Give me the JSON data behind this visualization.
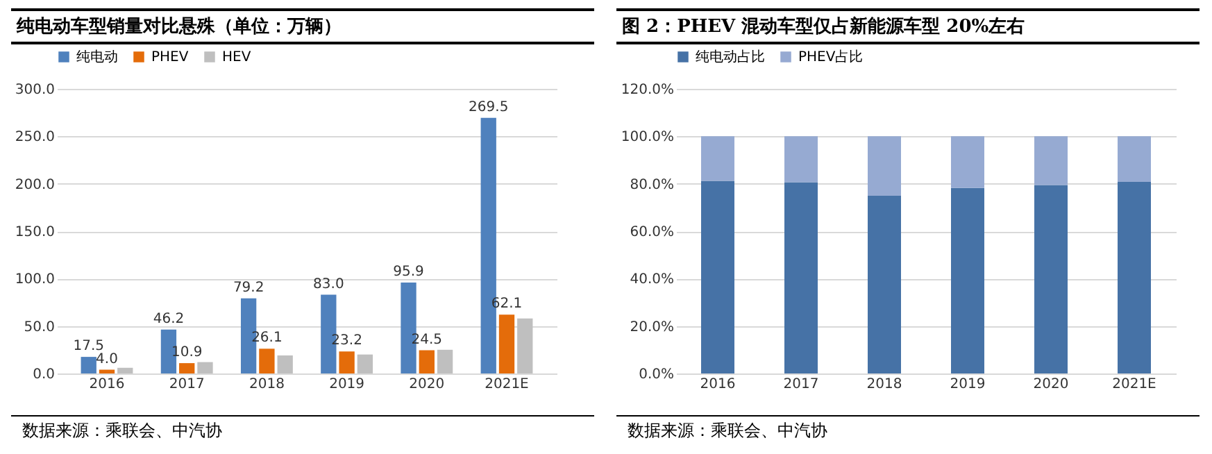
{
  "chart_data": [
    {
      "type": "bar",
      "title": "纯电动车型销量对比悬殊（单位：万辆）",
      "categories": [
        "2016",
        "2017",
        "2018",
        "2019",
        "2020",
        "2021E"
      ],
      "series": [
        {
          "name": "纯电动",
          "color": "#4f81bd",
          "values": [
            17.5,
            46.2,
            79.2,
            83.0,
            95.9,
            269.5
          ],
          "value_labels": [
            "17.5",
            "46.2",
            "79.2",
            "83.0",
            "95.9",
            "269.5"
          ]
        },
        {
          "name": "PHEV",
          "color": "#e46c0a",
          "values": [
            4.0,
            10.9,
            26.1,
            23.2,
            24.5,
            62.1
          ],
          "value_labels": [
            "4.0",
            "10.9",
            "26.1",
            "23.2",
            "24.5",
            "62.1"
          ]
        },
        {
          "name": "HEV",
          "color": "#bfbfbf",
          "values": [
            6,
            12,
            19,
            20,
            25,
            58
          ]
        }
      ],
      "ylim": [
        0,
        300
      ],
      "yticks": [
        {
          "value": 0,
          "label": "0.0"
        },
        {
          "value": 50,
          "label": "50.0"
        },
        {
          "value": 100,
          "label": "100.0"
        },
        {
          "value": 150,
          "label": "150.0"
        },
        {
          "value": 200,
          "label": "200.0"
        },
        {
          "value": 250,
          "label": "250.0"
        },
        {
          "value": 300,
          "label": "300.0"
        }
      ],
      "grid": "y",
      "legend": "top",
      "annotations": [
        "数据来源：乘联会、中汽协"
      ]
    },
    {
      "type": "bar",
      "title": "图 2：PHEV 混动车型仅占新能源车型 20%左右",
      "categories": [
        "2016",
        "2017",
        "2018",
        "2019",
        "2020",
        "2021E"
      ],
      "stacked": true,
      "series": [
        {
          "name": "纯电动占比",
          "color": "#4672a6",
          "values": [
            81.2,
            80.6,
            74.9,
            78.2,
            79.5,
            80.8
          ]
        },
        {
          "name": "PHEV占比",
          "color": "#96aad2",
          "values": [
            18.8,
            19.4,
            25.1,
            21.8,
            20.5,
            19.2
          ]
        }
      ],
      "ylim": [
        0,
        120
      ],
      "yticks": [
        {
          "value": 0,
          "label": "0.0%"
        },
        {
          "value": 20,
          "label": "20.0%"
        },
        {
          "value": 40,
          "label": "40.0%"
        },
        {
          "value": 60,
          "label": "60.0%"
        },
        {
          "value": 80,
          "label": "80.0%"
        },
        {
          "value": 100,
          "label": "100.0%"
        },
        {
          "value": 120,
          "label": "120.0%"
        }
      ],
      "grid": "y",
      "legend": "top",
      "annotations": [
        "数据来源：乘联会、中汽协"
      ]
    }
  ]
}
